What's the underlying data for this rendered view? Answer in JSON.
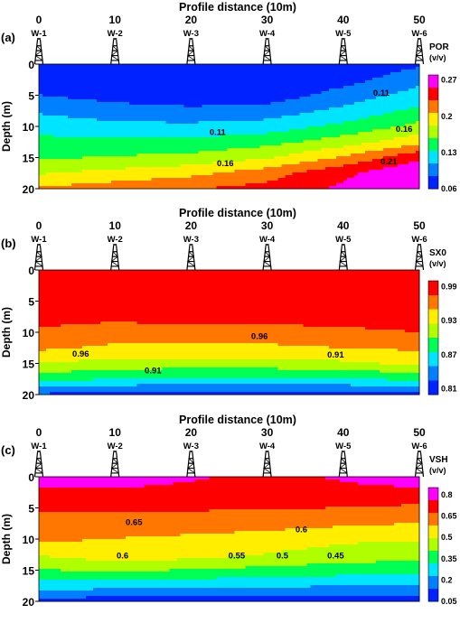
{
  "chart_data": [
    {
      "type": "heatmap",
      "panel_label": "(a)",
      "title": "Profile distance (10m)",
      "ylabel": "Depth (m)",
      "x_ticks": [
        0,
        10,
        20,
        30,
        40,
        50
      ],
      "y_ticks": [
        0,
        5,
        10,
        15,
        20
      ],
      "xlim": [
        0,
        50
      ],
      "ylim": [
        0,
        20
      ],
      "y_inverted": true,
      "wells": [
        "W-1",
        "W-2",
        "W-3",
        "W-4",
        "W-5",
        "W-6"
      ],
      "well_positions": [
        0,
        10,
        20,
        30,
        40,
        50
      ],
      "colorbar": {
        "label": "POR",
        "unit": "(v/v)",
        "ticks": [
          "0.27",
          "0.2",
          "0.13",
          "0.06"
        ],
        "tick_values": [
          0.27,
          0.2,
          0.13,
          0.06
        ],
        "range": [
          0.06,
          0.28
        ],
        "colors": [
          "#0022ff",
          "#0080ff",
          "#00e5ff",
          "#00ff55",
          "#b0ff00",
          "#ffee00",
          "#ff7700",
          "#ff0000",
          "#ff00ff"
        ]
      },
      "contour_labels": [
        {
          "text": "0.11",
          "x": 45,
          "y": 4.5
        },
        {
          "text": "0.11",
          "x": 23.5,
          "y": 10.8
        },
        {
          "text": "0.16",
          "x": 48,
          "y": 10.3
        },
        {
          "text": "0.16",
          "x": 24.5,
          "y": 15.8
        },
        {
          "text": "0.21",
          "x": 46,
          "y": 15.5
        }
      ],
      "grid": {
        "x": [
          0,
          10,
          20,
          30,
          40,
          50
        ],
        "y": [
          0,
          2.5,
          5,
          7.5,
          10,
          12.5,
          15,
          17.5,
          20
        ],
        "z": [
          [
            0.07,
            0.06,
            0.06,
            0.06,
            0.065,
            0.08
          ],
          [
            0.07,
            0.065,
            0.06,
            0.06,
            0.075,
            0.1
          ],
          [
            0.085,
            0.075,
            0.07,
            0.07,
            0.095,
            0.12
          ],
          [
            0.105,
            0.095,
            0.09,
            0.095,
            0.115,
            0.14
          ],
          [
            0.125,
            0.115,
            0.115,
            0.12,
            0.14,
            0.165
          ],
          [
            0.14,
            0.14,
            0.14,
            0.15,
            0.17,
            0.2
          ],
          [
            0.155,
            0.16,
            0.165,
            0.18,
            0.21,
            0.25
          ],
          [
            0.18,
            0.19,
            0.2,
            0.22,
            0.25,
            0.28
          ],
          [
            0.21,
            0.22,
            0.23,
            0.24,
            0.26,
            0.28
          ]
        ]
      }
    },
    {
      "type": "heatmap",
      "panel_label": "(b)",
      "title": "Profile distance (10m)",
      "ylabel": "Depth (m)",
      "x_ticks": [
        0,
        10,
        20,
        30,
        40,
        50
      ],
      "y_ticks": [
        0,
        5,
        10,
        15,
        20
      ],
      "xlim": [
        0,
        50
      ],
      "ylim": [
        0,
        20
      ],
      "y_inverted": true,
      "wells": [
        "W-1",
        "W-2",
        "W-3",
        "W-4",
        "W-5",
        "W-6"
      ],
      "well_positions": [
        0,
        10,
        20,
        30,
        40,
        50
      ],
      "colorbar": {
        "label": "SX0",
        "unit": "(v/v)",
        "ticks": [
          "0.99",
          "0.93",
          "0.87",
          "0.81"
        ],
        "tick_values": [
          0.99,
          0.93,
          0.87,
          0.81
        ],
        "range": [
          0.8,
          1.0
        ],
        "colors": [
          "#0022ff",
          "#0080ff",
          "#00e5ff",
          "#00ff55",
          "#b0ff00",
          "#ffee00",
          "#ff7700",
          "#ff0000"
        ]
      },
      "contour_labels": [
        {
          "text": "0.96",
          "x": 5.5,
          "y": 13.3
        },
        {
          "text": "0.96",
          "x": 29,
          "y": 10.5
        },
        {
          "text": "0.91",
          "x": 15,
          "y": 16
        },
        {
          "text": "0.91",
          "x": 39,
          "y": 13.5
        }
      ],
      "grid": {
        "x": [
          0,
          10,
          20,
          30,
          40,
          50
        ],
        "y": [
          0,
          2.5,
          5,
          7.5,
          10,
          12.5,
          15,
          17.5,
          20
        ],
        "z": [
          [
            1.0,
            1.0,
            1.0,
            1.0,
            1.0,
            1.0
          ],
          [
            1.0,
            1.0,
            1.0,
            1.0,
            1.0,
            1.0
          ],
          [
            0.995,
            0.995,
            0.995,
            0.995,
            0.995,
            0.995
          ],
          [
            0.985,
            0.98,
            0.985,
            0.985,
            0.985,
            0.985
          ],
          [
            0.97,
            0.965,
            0.965,
            0.965,
            0.97,
            0.975
          ],
          [
            0.955,
            0.945,
            0.945,
            0.945,
            0.95,
            0.955
          ],
          [
            0.925,
            0.915,
            0.915,
            0.915,
            0.92,
            0.93
          ],
          [
            0.885,
            0.875,
            0.87,
            0.87,
            0.875,
            0.88
          ],
          [
            0.82,
            0.815,
            0.81,
            0.81,
            0.81,
            0.815
          ]
        ]
      }
    },
    {
      "type": "heatmap",
      "panel_label": "(c)",
      "title": "Profile distance (10m)",
      "ylabel": "Depth (m)",
      "x_ticks": [
        0,
        10,
        20,
        30,
        40,
        50
      ],
      "y_ticks": [
        0,
        5,
        10,
        15,
        20
      ],
      "xlim": [
        0,
        50
      ],
      "ylim": [
        0,
        20
      ],
      "y_inverted": true,
      "wells": [
        "W-1",
        "W-2",
        "W-3",
        "W-4",
        "W-5",
        "W-6"
      ],
      "well_positions": [
        0,
        10,
        20,
        30,
        40,
        50
      ],
      "colorbar": {
        "label": "VSH",
        "unit": "(v/v)",
        "ticks": [
          "0.8",
          "0.65",
          "0.5",
          "0.35",
          "0.2",
          "0.05"
        ],
        "tick_values": [
          0.8,
          0.65,
          0.5,
          0.35,
          0.2,
          0.05
        ],
        "range": [
          0.05,
          0.85
        ],
        "colors": [
          "#0022ff",
          "#0080ff",
          "#00e5ff",
          "#00ff55",
          "#b0ff00",
          "#ffee00",
          "#ff7700",
          "#ff0000",
          "#ff00ff"
        ]
      },
      "contour_labels": [
        {
          "text": "0.65",
          "x": 12.5,
          "y": 7.2
        },
        {
          "text": "0.6",
          "x": 11,
          "y": 12.5
        },
        {
          "text": "0.55",
          "x": 26,
          "y": 12.5
        },
        {
          "text": "0.5",
          "x": 32,
          "y": 12.5
        },
        {
          "text": "0.45",
          "x": 39,
          "y": 12.5
        },
        {
          "text": "0.6",
          "x": 34.5,
          "y": 8.3
        }
      ],
      "grid": {
        "x": [
          0,
          10,
          20,
          30,
          40,
          50
        ],
        "y": [
          0,
          2.5,
          5,
          7.5,
          10,
          12.5,
          15,
          17.5,
          20
        ],
        "z": [
          [
            0.82,
            0.82,
            0.78,
            0.72,
            0.78,
            0.85
          ],
          [
            0.74,
            0.74,
            0.72,
            0.7,
            0.72,
            0.72
          ],
          [
            0.68,
            0.68,
            0.68,
            0.68,
            0.67,
            0.66
          ],
          [
            0.64,
            0.65,
            0.64,
            0.62,
            0.6,
            0.58
          ],
          [
            0.6,
            0.58,
            0.56,
            0.54,
            0.51,
            0.5
          ],
          [
            0.5,
            0.55,
            0.53,
            0.49,
            0.46,
            0.44
          ],
          [
            0.4,
            0.42,
            0.4,
            0.38,
            0.36,
            0.35
          ],
          [
            0.28,
            0.26,
            0.25,
            0.24,
            0.23,
            0.22
          ],
          [
            0.1,
            0.09,
            0.08,
            0.08,
            0.08,
            0.08
          ]
        ]
      }
    }
  ]
}
